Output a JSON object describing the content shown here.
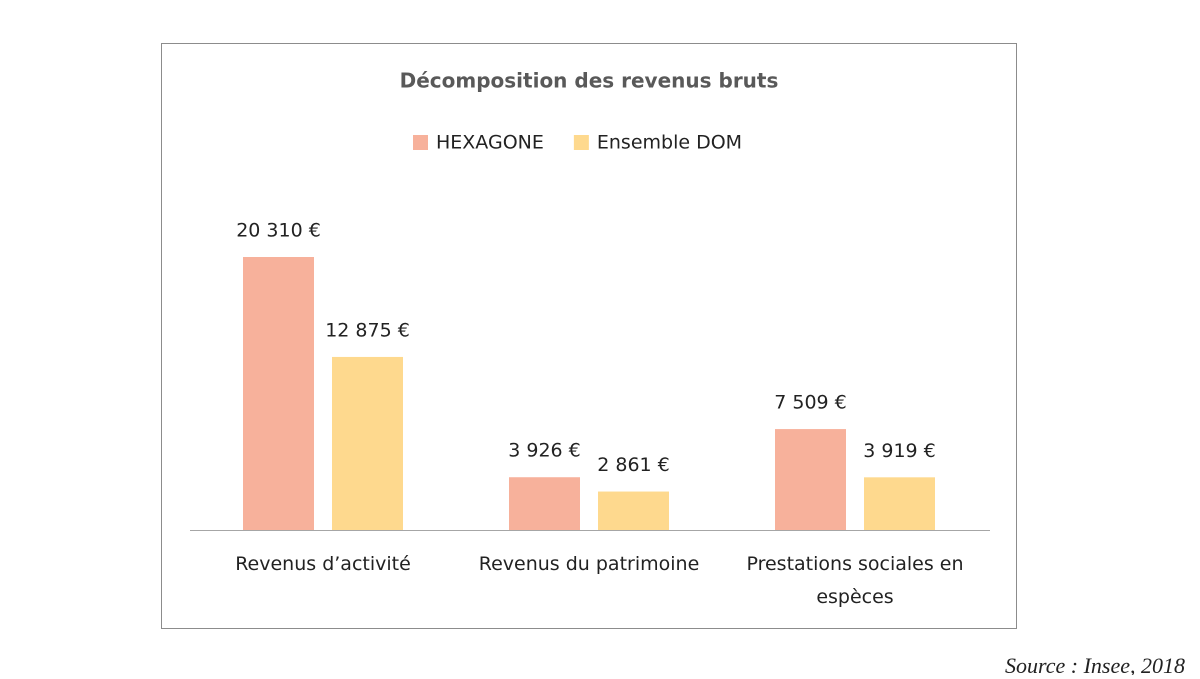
{
  "chart_data": {
    "type": "bar",
    "title": "Décomposition des revenus bruts",
    "categories": [
      "Revenus d’activité",
      "Revenus du patrimoine",
      "Prestations sociales en espèces"
    ],
    "series": [
      {
        "name": "HEXAGONE",
        "color": "#f7b19b",
        "values": [
          20310,
          3926,
          7509
        ],
        "value_labels": [
          "20 310 €",
          "3 926 €",
          "7 509 €"
        ]
      },
      {
        "name": "Ensemble DOM",
        "color": "#fed98e",
        "values": [
          12875,
          2861,
          3919
        ],
        "value_labels": [
          "12 875 €",
          "2 861 €",
          "3 919 €"
        ]
      }
    ],
    "legend": "top",
    "source": "Source : Insee, 2018"
  }
}
